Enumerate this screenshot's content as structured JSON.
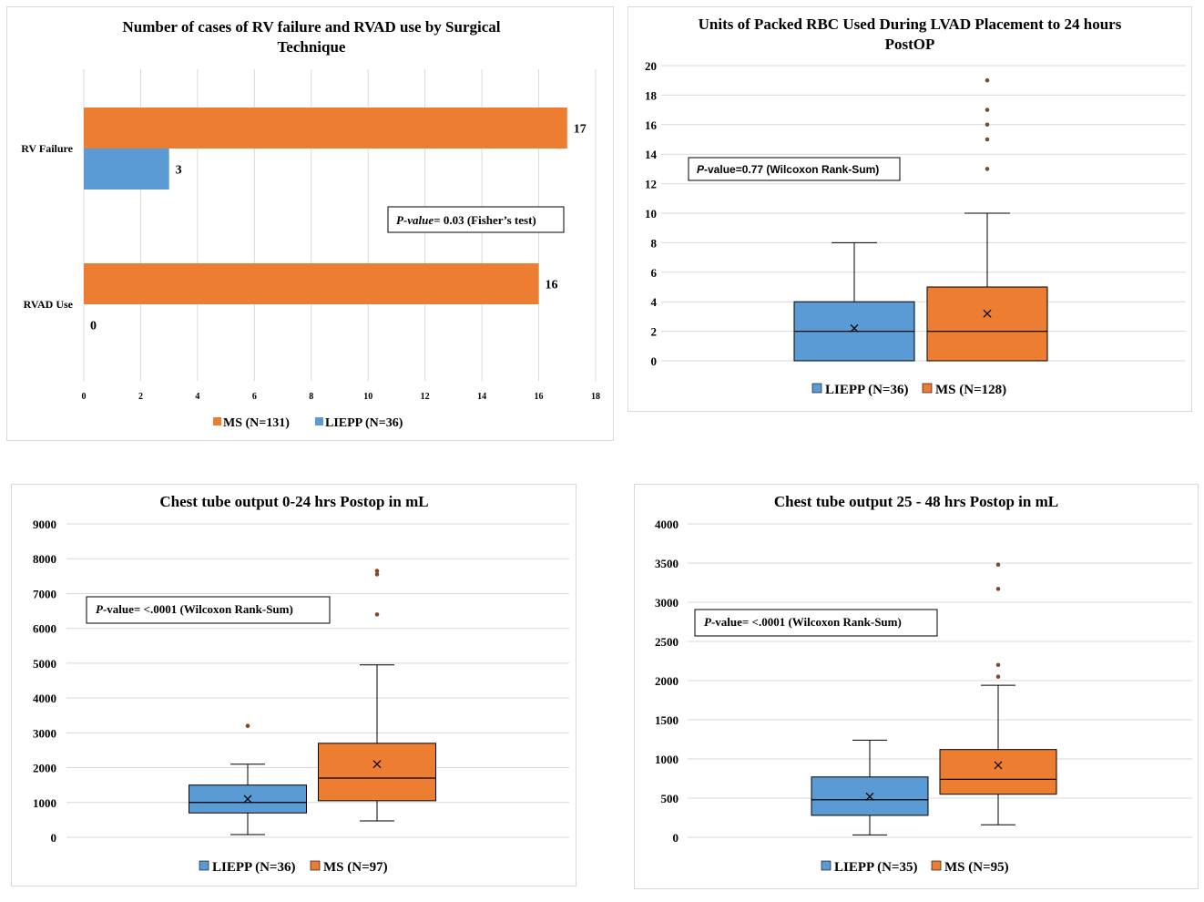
{
  "colors": {
    "ms": "#ED7D31",
    "liepp": "#5B9BD5",
    "outlier": "#7F4A2A",
    "grid": "#D9D9D9"
  },
  "chart_data": [
    {
      "type": "bar",
      "orientation": "horizontal",
      "title_lines": [
        "Number of cases of RV failure and RVAD use by Surgical",
        "Technique"
      ],
      "categories": [
        "RV Failure",
        "RVAD Use"
      ],
      "series": [
        {
          "name": "MS (N=131)",
          "values": [
            17,
            16
          ]
        },
        {
          "name": "LIEPP (N=36)",
          "values": [
            3,
            0
          ]
        }
      ],
      "data_labels": [
        [
          "17",
          "16"
        ],
        [
          "3",
          "0"
        ]
      ],
      "xlim": [
        0,
        18
      ],
      "xticks": [
        "0",
        "2",
        "4",
        "6",
        "8",
        "10",
        "12",
        "14",
        "16",
        "18"
      ],
      "grid": true,
      "legend": "bottom",
      "annotation": {
        "italic": "P-value",
        "text": "= 0.03 (Fisher’s test)"
      }
    },
    {
      "type": "box",
      "title_lines": [
        "Units of Packed RBC Used During LVAD Placement to 24 hours",
        "PostOP"
      ],
      "ylim": [
        0,
        20
      ],
      "yticks": [
        "0",
        "2",
        "4",
        "6",
        "8",
        "10",
        "12",
        "14",
        "16",
        "18",
        "20"
      ],
      "series": [
        {
          "name": "LIEPP (N=36)",
          "min": 0,
          "q1": 0,
          "median": 2,
          "q3": 4,
          "max": 8,
          "mean": 2.2,
          "outliers": []
        },
        {
          "name": "MS (N=128)",
          "min": 0,
          "q1": 0,
          "median": 2,
          "q3": 5,
          "max": 10,
          "mean": 3.2,
          "outliers": [
            13,
            15,
            16,
            17,
            19
          ]
        }
      ],
      "grid": true,
      "legend": "bottom",
      "annotation": {
        "italic": "P",
        "text": "-value=0.77 (Wilcoxon Rank-Sum)"
      }
    },
    {
      "type": "box",
      "title_lines": [
        "Chest tube output   0-24 hrs Postop in mL"
      ],
      "ylim": [
        0,
        9000
      ],
      "yticks": [
        "0",
        "1000",
        "2000",
        "3000",
        "4000",
        "5000",
        "6000",
        "7000",
        "8000",
        "9000"
      ],
      "series": [
        {
          "name": "LIEPP (N=36)",
          "min": 80,
          "q1": 700,
          "median": 1000,
          "q3": 1500,
          "max": 2100,
          "mean": 1100,
          "outliers": [
            3200
          ]
        },
        {
          "name": "MS (N=97)",
          "min": 470,
          "q1": 1050,
          "median": 1700,
          "q3": 2700,
          "max": 4950,
          "mean": 2100,
          "outliers": [
            6400,
            7550,
            7650
          ]
        }
      ],
      "grid": true,
      "legend": "bottom",
      "annotation": {
        "italic": "P",
        "text": "-value= <.0001 (Wilcoxon Rank-Sum)"
      }
    },
    {
      "type": "box",
      "title_lines": [
        "Chest tube output  25 - 48 hrs Postop in mL"
      ],
      "ylim": [
        0,
        4000
      ],
      "yticks": [
        "0",
        "500",
        "1000",
        "1500",
        "2000",
        "2500",
        "3000",
        "3500",
        "4000"
      ],
      "series": [
        {
          "name": "LIEPP (N=35)",
          "min": 30,
          "q1": 280,
          "median": 480,
          "q3": 770,
          "max": 1240,
          "mean": 520,
          "outliers": []
        },
        {
          "name": "MS (N=95)",
          "min": 160,
          "q1": 550,
          "median": 740,
          "q3": 1120,
          "max": 1940,
          "mean": 920,
          "outliers": [
            2050,
            2200,
            3170,
            3480
          ]
        }
      ],
      "grid": true,
      "legend": "bottom",
      "annotation": {
        "italic": "P",
        "text": "-value= <.0001 (Wilcoxon Rank-Sum)"
      }
    }
  ]
}
